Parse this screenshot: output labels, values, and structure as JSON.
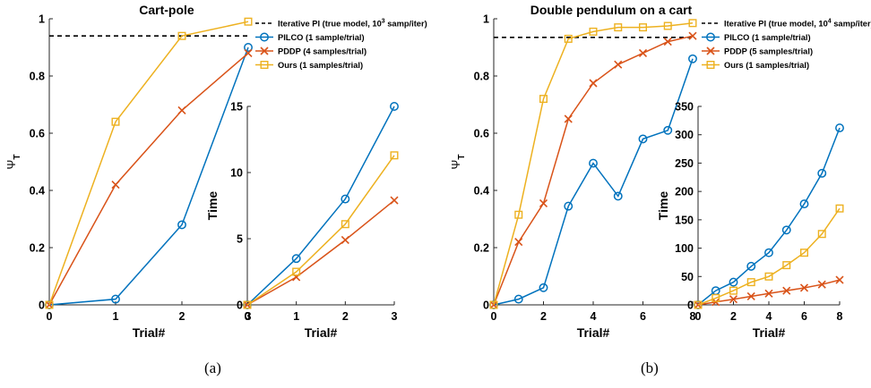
{
  "captions": [
    "(a)",
    "(b)"
  ],
  "chart_data": [
    {
      "id": "cp_psi",
      "type": "line",
      "title": "Cart-pole",
      "xlabel": "Trial#",
      "ylabel": "Ψ",
      "ylabel_sub": "T",
      "xlim": [
        0,
        3
      ],
      "ylim": [
        0,
        1
      ],
      "xticks": [
        0,
        1,
        2,
        3
      ],
      "yticks": [
        0,
        0.2,
        0.4,
        0.6,
        0.8,
        1
      ],
      "ytick_labels": [
        "0",
        "0.2",
        "0.4",
        "0.6",
        "0.8",
        "1"
      ],
      "grid": false,
      "reference": {
        "value": 0.94,
        "style": "dashed",
        "color": "#000000"
      },
      "series": [
        {
          "color": "#0072BD",
          "marker": "circle",
          "x": [
            0,
            1,
            2,
            3
          ],
          "y": [
            0,
            0.02,
            0.28,
            0.9
          ]
        },
        {
          "color": "#D95319",
          "marker": "x",
          "x": [
            0,
            1,
            2,
            3
          ],
          "y": [
            0,
            0.42,
            0.68,
            0.88
          ]
        },
        {
          "color": "#EDB120",
          "marker": "square",
          "x": [
            0,
            1,
            2,
            3
          ],
          "y": [
            0,
            0.64,
            0.94,
            0.99
          ]
        }
      ]
    },
    {
      "id": "cp_time",
      "type": "line",
      "title": "",
      "xlabel": "Trial#",
      "ylabel": "Time",
      "xlim": [
        0,
        3
      ],
      "ylim": [
        0,
        15
      ],
      "xticks": [
        0,
        1,
        2,
        3
      ],
      "yticks": [
        0,
        5,
        10,
        15
      ],
      "ytick_labels": [
        "0",
        "5",
        "10",
        "15"
      ],
      "grid": false,
      "series": [
        {
          "color": "#0072BD",
          "marker": "circle",
          "x": [
            0,
            1,
            2,
            3
          ],
          "y": [
            0,
            3.5,
            8.0,
            15.0
          ]
        },
        {
          "color": "#D95319",
          "marker": "x",
          "x": [
            0,
            1,
            2,
            3
          ],
          "y": [
            0,
            2.1,
            4.9,
            7.9
          ]
        },
        {
          "color": "#EDB120",
          "marker": "square",
          "x": [
            0,
            1,
            2,
            3
          ],
          "y": [
            0,
            2.5,
            6.1,
            11.3
          ]
        }
      ]
    },
    {
      "id": "dp_psi",
      "type": "line",
      "title": "Double pendulum on a cart",
      "xlabel": "Trial#",
      "ylabel": "Ψ",
      "ylabel_sub": "T",
      "xlim": [
        0,
        8
      ],
      "ylim": [
        0,
        1
      ],
      "xticks": [
        0,
        2,
        4,
        6,
        8
      ],
      "yticks": [
        0,
        0.2,
        0.4,
        0.6,
        0.8,
        1
      ],
      "ytick_labels": [
        "0",
        "0.2",
        "0.4",
        "0.6",
        "0.8",
        "1"
      ],
      "grid": false,
      "reference": {
        "value": 0.935,
        "style": "dashed",
        "color": "#000000"
      },
      "series": [
        {
          "color": "#0072BD",
          "marker": "circle",
          "x": [
            0,
            1,
            2,
            3,
            4,
            5,
            6,
            7,
            8
          ],
          "y": [
            0,
            0.02,
            0.06,
            0.345,
            0.495,
            0.38,
            0.58,
            0.61,
            0.86
          ]
        },
        {
          "color": "#D95319",
          "marker": "x",
          "x": [
            0,
            1,
            2,
            3,
            4,
            5,
            6,
            7,
            8
          ],
          "y": [
            0,
            0.22,
            0.355,
            0.65,
            0.775,
            0.84,
            0.88,
            0.92,
            0.94
          ]
        },
        {
          "color": "#EDB120",
          "marker": "square",
          "x": [
            0,
            1,
            2,
            3,
            4,
            5,
            6,
            7,
            8
          ],
          "y": [
            0,
            0.315,
            0.72,
            0.93,
            0.955,
            0.97,
            0.97,
            0.975,
            0.985
          ]
        }
      ]
    },
    {
      "id": "dp_time",
      "type": "line",
      "title": "",
      "xlabel": "Trial#",
      "ylabel": "Time",
      "xlim": [
        0,
        8
      ],
      "ylim": [
        0,
        350
      ],
      "xticks": [
        0,
        2,
        4,
        6,
        8
      ],
      "yticks": [
        0,
        50,
        100,
        150,
        200,
        250,
        300,
        350
      ],
      "ytick_labels": [
        "0",
        "50",
        "100",
        "150",
        "200",
        "250",
        "300",
        "350"
      ],
      "grid": false,
      "series": [
        {
          "color": "#0072BD",
          "marker": "circle",
          "x": [
            0,
            1,
            2,
            3,
            4,
            5,
            6,
            7,
            8
          ],
          "y": [
            0,
            25,
            40,
            68,
            92,
            132,
            178,
            232,
            312
          ]
        },
        {
          "color": "#D95319",
          "marker": "x",
          "x": [
            0,
            1,
            2,
            3,
            4,
            5,
            6,
            7,
            8
          ],
          "y": [
            0,
            5,
            10,
            15,
            20,
            25,
            30,
            36,
            44
          ]
        },
        {
          "color": "#EDB120",
          "marker": "square",
          "x": [
            0,
            1,
            2,
            3,
            4,
            5,
            6,
            7,
            8
          ],
          "y": [
            0,
            12,
            25,
            40,
            50,
            70,
            92,
            125,
            170
          ]
        }
      ]
    }
  ],
  "legends": [
    {
      "chart": "cp_psi",
      "entries": [
        {
          "style": "dashed",
          "color": "#000000",
          "text": "Iterative PI (true model, 10",
          "sup": "3",
          "text_after": " samp/iter)"
        },
        {
          "color": "#0072BD",
          "marker": "circle",
          "text": "PILCO (1 sample/trial)"
        },
        {
          "color": "#D95319",
          "marker": "x",
          "text": "PDDP (4 samples/trial)"
        },
        {
          "color": "#EDB120",
          "marker": "square",
          "text": "Ours (1 samples/trial)"
        }
      ]
    },
    {
      "chart": "dp_psi",
      "entries": [
        {
          "style": "dashed",
          "color": "#000000",
          "text": "Iterative PI (true model, 10",
          "sup": "4",
          "text_after": " samp/iter)"
        },
        {
          "color": "#0072BD",
          "marker": "circle",
          "text": "PILCO (1 sample/trial)"
        },
        {
          "color": "#D95319",
          "marker": "x",
          "text": "PDDP (5 samples/trial)"
        },
        {
          "color": "#EDB120",
          "marker": "square",
          "text": "Ours (1 samples/trial)"
        }
      ]
    }
  ]
}
